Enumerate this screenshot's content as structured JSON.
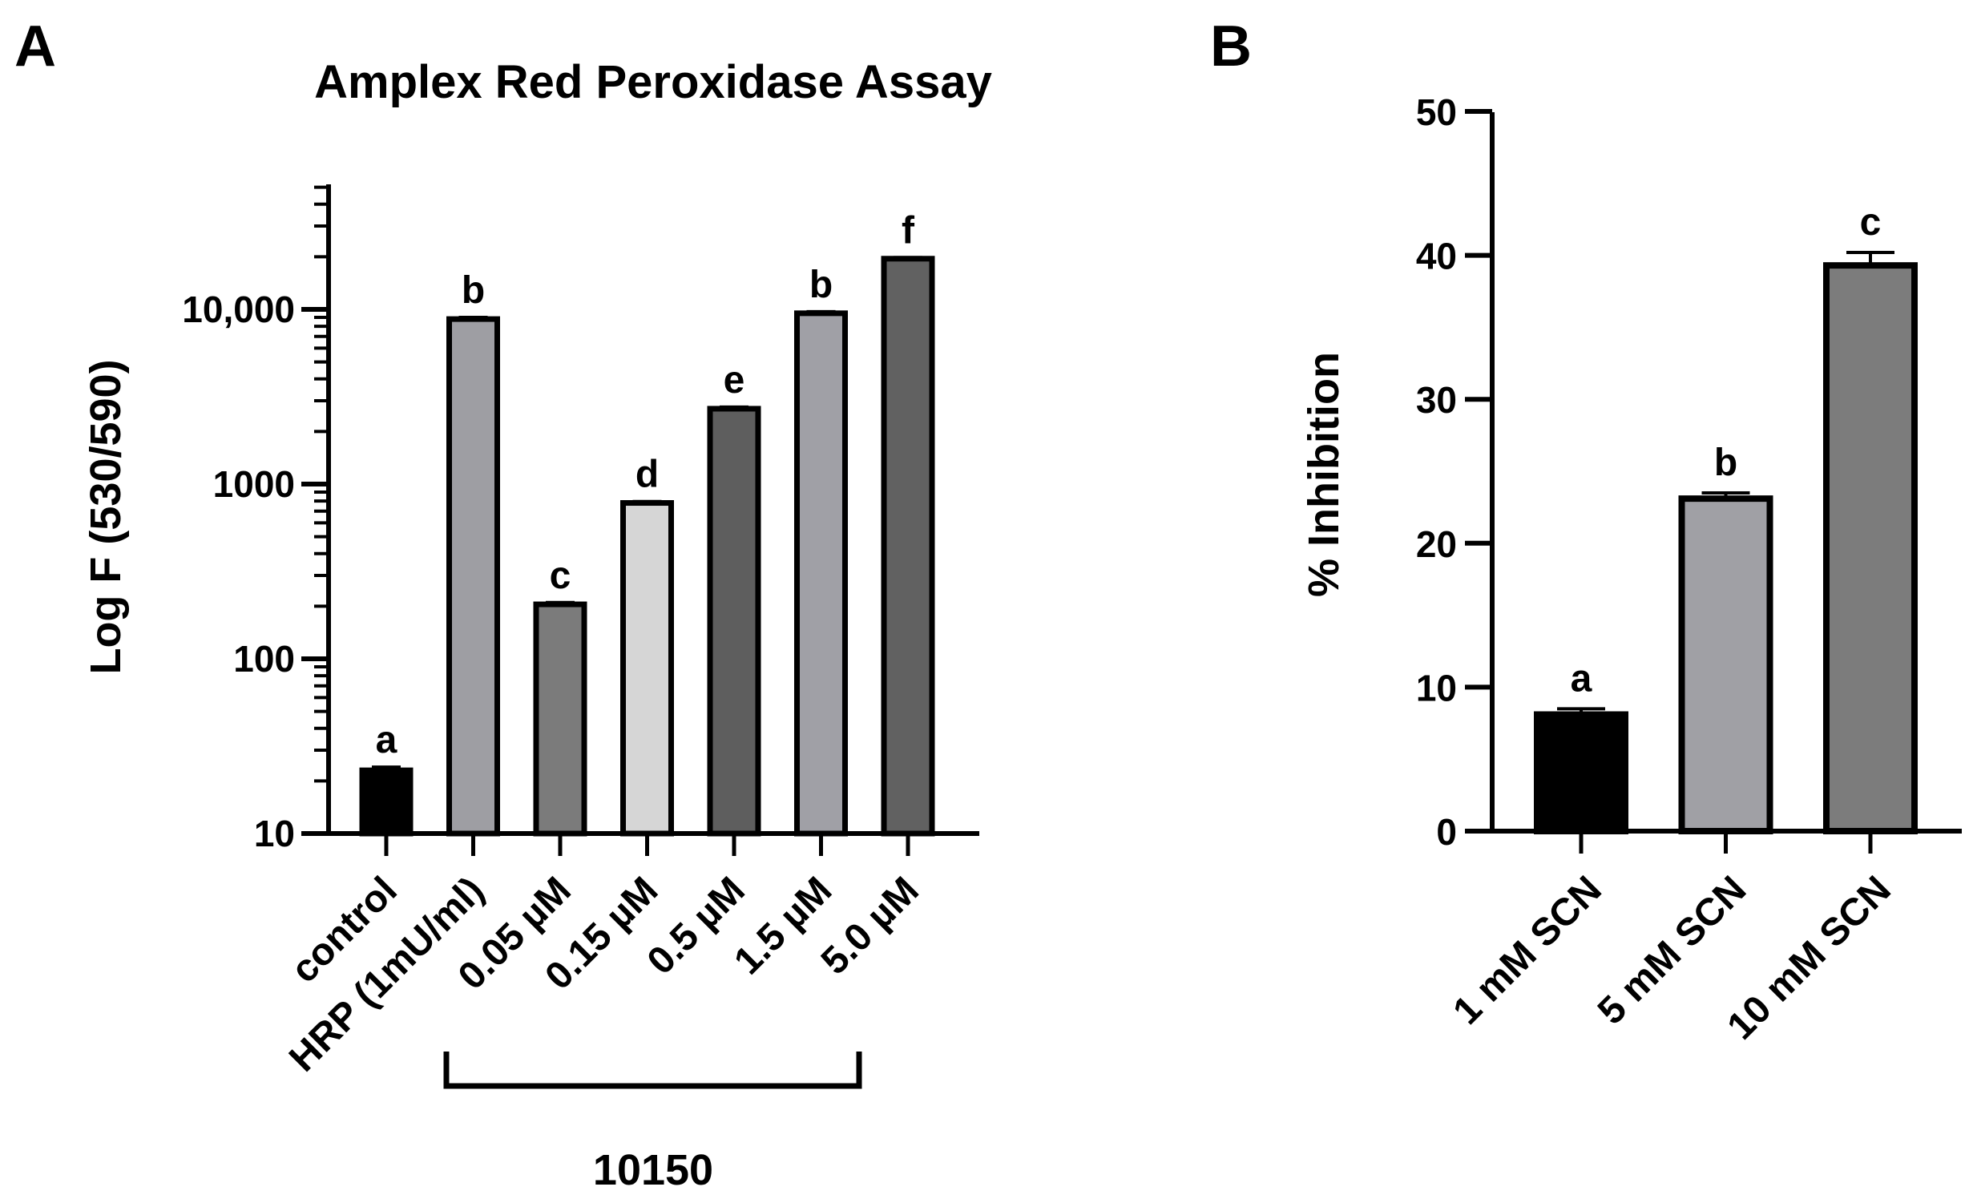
{
  "panels": {
    "a": {
      "letter": "A"
    },
    "b": {
      "letter": "B"
    }
  },
  "chart_data": [
    {
      "panel": "A",
      "type": "bar",
      "title": "Amplex Red Peroxidase Assay",
      "xlabel": "",
      "ylabel": "Log F (530/590)",
      "yscale": "log",
      "ylim": [
        10,
        50000
      ],
      "yticks": [
        10,
        100,
        1000,
        10000
      ],
      "ytick_labels": [
        "10",
        "100",
        "1000",
        "10,000"
      ],
      "categories": [
        "control",
        "HRP (1mU/ml)",
        "0.05 µM",
        "0.15 µM",
        "0.5 µM",
        "1.5 µM",
        "5.0 µM"
      ],
      "values": [
        23,
        8800,
        205,
        780,
        2700,
        9500,
        19500
      ],
      "errors": [
        1,
        200,
        5,
        15,
        60,
        200,
        300
      ],
      "significance": [
        "a",
        "b",
        "c",
        "d",
        "e",
        "b",
        "f"
      ],
      "bar_colors": [
        "#000000",
        "#9e9ea3",
        "#7b7b7b",
        "#d6d6d6",
        "#5e5e5e",
        "#a0a0a6",
        "#616161"
      ],
      "group_bracket": {
        "label": "10150",
        "from_category": "0.05 µM",
        "to_category": "5.0 µM"
      }
    },
    {
      "panel": "B",
      "type": "bar",
      "title": "",
      "xlabel": "",
      "ylabel": "% Inhibition",
      "yscale": "linear",
      "ylim": [
        0,
        50
      ],
      "yticks": [
        0,
        10,
        20,
        30,
        40,
        50
      ],
      "ytick_labels": [
        "0",
        "10",
        "20",
        "30",
        "40",
        "50"
      ],
      "categories": [
        "1 mM SCN",
        "5 mM SCN",
        "10 mM SCN"
      ],
      "values": [
        8.1,
        23.1,
        39.3
      ],
      "errors": [
        0.4,
        0.4,
        0.9
      ],
      "significance": [
        "a",
        "b",
        "c"
      ],
      "bar_colors": [
        "#000000",
        "#a0a0a5",
        "#7c7c7c"
      ]
    }
  ]
}
